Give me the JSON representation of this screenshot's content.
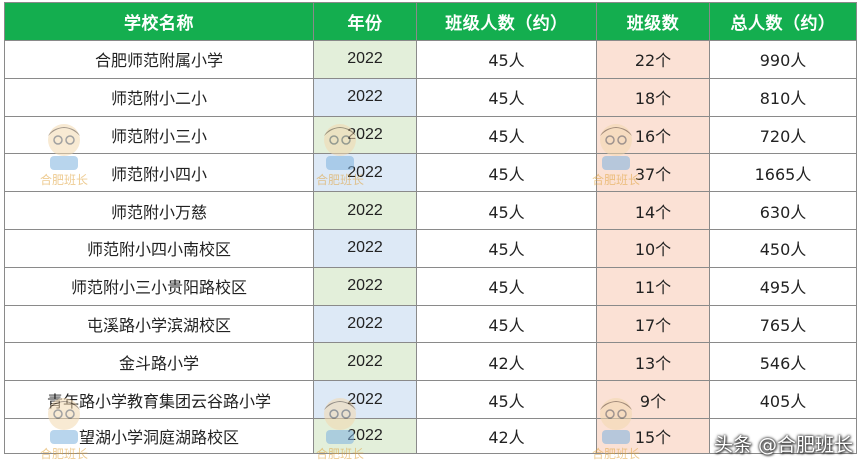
{
  "table": {
    "headers": [
      "学校名称",
      "年份",
      "班级人数（约）",
      "班级数",
      "总人数（约）"
    ],
    "rows": [
      [
        "合肥师范附属小学",
        "2022",
        "45人",
        "22个",
        "990人"
      ],
      [
        "师范附小二小",
        "2022",
        "45人",
        "18个",
        "810人"
      ],
      [
        "师范附小三小",
        "2022",
        "45人",
        "16个",
        "720人"
      ],
      [
        "师范附小四小",
        "2022",
        "45人",
        "37个",
        "1665人"
      ],
      [
        "师范附小万慈",
        "2022",
        "45人",
        "14个",
        "630人"
      ],
      [
        "师范附小四小南校区",
        "2022",
        "45人",
        "10个",
        "450人"
      ],
      [
        "师范附小三小贵阳路校区",
        "2022",
        "45人",
        "11个",
        "495人"
      ],
      [
        "屯溪路小学滨湖校区",
        "2022",
        "45人",
        "17个",
        "765人"
      ],
      [
        "金斗路小学",
        "2022",
        "42人",
        "13个",
        "546人"
      ],
      [
        "青年路小学教育集团云谷路小学",
        "2022",
        "45人",
        "9个",
        "405人"
      ],
      [
        "望湖小学洞庭湖路校区",
        "2022",
        "42人",
        "15个",
        ""
      ]
    ]
  },
  "watermark": {
    "text": "合肥班长"
  },
  "credit": {
    "text": "头条 @合肥班长"
  },
  "colors": {
    "header_bg": "#14ae4f",
    "year_green": "#e3efda",
    "year_blue": "#dde9f6",
    "classes_bg": "#fbe1d5"
  }
}
